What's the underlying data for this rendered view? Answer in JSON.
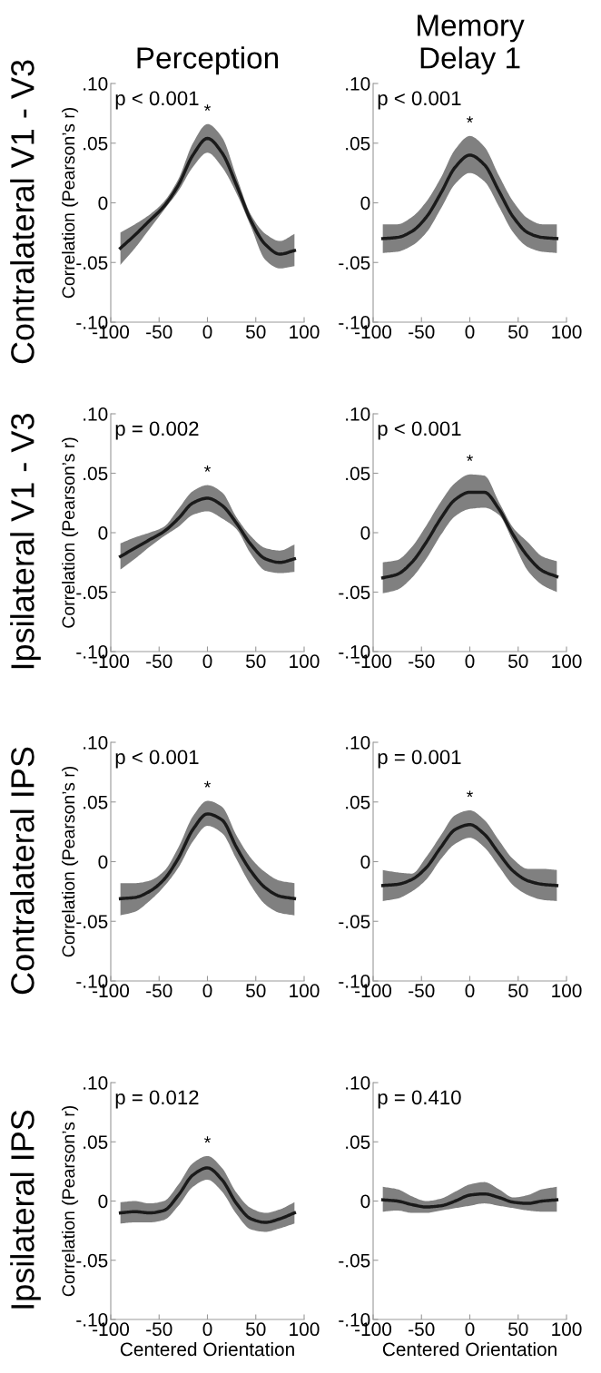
{
  "chart_data": [
    {
      "type": "line",
      "title": "Perception",
      "ylabel": "Correlation (Pearson’s r)",
      "x": [
        -90,
        -75,
        -60,
        -45,
        -30,
        -15,
        0,
        15,
        30,
        45,
        60,
        75,
        90
      ],
      "xlim": [
        -100,
        100
      ],
      "xticks": [
        -100,
        -50,
        0,
        50,
        100
      ],
      "ylim": [
        -0.1,
        0.1
      ],
      "yticks": [
        {
          "value": -0.1,
          "label": "-.10"
        },
        {
          "value": -0.05,
          "label": "-.05"
        },
        0,
        {
          "value": 0.05,
          "label": ".05"
        },
        {
          "value": 0.1,
          "label": ".10"
        }
      ],
      "grid": false,
      "legend": false,
      "marker": "none",
      "line_style": "solid",
      "series": [
        {
          "color": "#1a1a1a",
          "values": [
            -0.038,
            -0.027,
            -0.015,
            -0.003,
            0.015,
            0.04,
            0.054,
            0.042,
            0.015,
            -0.015,
            -0.035,
            -0.043,
            -0.04
          ],
          "lower": [
            -0.052,
            -0.038,
            -0.022,
            -0.006,
            0.01,
            0.03,
            0.042,
            0.03,
            0.008,
            -0.02,
            -0.048,
            -0.055,
            -0.053
          ],
          "upper": [
            -0.025,
            -0.018,
            -0.01,
            0.001,
            0.02,
            0.05,
            0.066,
            0.055,
            0.022,
            -0.01,
            -0.026,
            -0.032,
            -0.026
          ]
        }
      ],
      "annotations": [
        "p < 0.001",
        "*",
        "Contralateral V1 - V3"
      ]
    },
    {
      "type": "line",
      "title": "Memory\nDelay 1",
      "x": [
        -90,
        -75,
        -60,
        -45,
        -30,
        -15,
        0,
        15,
        30,
        45,
        60,
        75,
        90
      ],
      "xlim": [
        -100,
        100
      ],
      "xticks": [
        -100,
        -50,
        0,
        50,
        100
      ],
      "ylim": [
        -0.1,
        0.1
      ],
      "yticks": [
        {
          "value": -0.1,
          "label": "-.10"
        },
        {
          "value": -0.05,
          "label": "-.05"
        },
        0,
        {
          "value": 0.05,
          "label": ".05"
        },
        {
          "value": 0.1,
          "label": ".10"
        }
      ],
      "grid": false,
      "legend": false,
      "marker": "none",
      "line_style": "solid",
      "series": [
        {
          "color": "#1a1a1a",
          "values": [
            -0.03,
            -0.029,
            -0.024,
            -0.012,
            0.008,
            0.03,
            0.04,
            0.032,
            0.01,
            -0.012,
            -0.025,
            -0.029,
            -0.03
          ],
          "lower": [
            -0.042,
            -0.041,
            -0.036,
            -0.025,
            -0.005,
            0.016,
            0.025,
            0.018,
            -0.003,
            -0.025,
            -0.037,
            -0.041,
            -0.042
          ],
          "upper": [
            -0.018,
            -0.018,
            -0.012,
            0.001,
            0.021,
            0.045,
            0.056,
            0.047,
            0.023,
            0.001,
            -0.013,
            -0.018,
            -0.018
          ]
        }
      ],
      "annotations": [
        "p < 0.001",
        "*"
      ]
    },
    {
      "type": "line",
      "x": [
        -90,
        -75,
        -60,
        -45,
        -30,
        -15,
        0,
        15,
        30,
        45,
        60,
        75,
        90
      ],
      "ylabel": "Correlation (Pearson’s r)",
      "xlim": [
        -100,
        100
      ],
      "xticks": [
        -100,
        -50,
        0,
        50,
        100
      ],
      "ylim": [
        -0.1,
        0.1
      ],
      "yticks": [
        {
          "value": -0.1,
          "label": "-.10"
        },
        {
          "value": -0.05,
          "label": "-.05"
        },
        0,
        {
          "value": 0.05,
          "label": ".05"
        },
        {
          "value": 0.1,
          "label": ".10"
        }
      ],
      "grid": false,
      "legend": false,
      "marker": "none",
      "line_style": "solid",
      "series": [
        {
          "color": "#1a1a1a",
          "values": [
            -0.02,
            -0.013,
            -0.006,
            0.001,
            0.012,
            0.025,
            0.029,
            0.023,
            0.008,
            -0.01,
            -0.022,
            -0.025,
            -0.022
          ],
          "lower": [
            -0.031,
            -0.022,
            -0.012,
            -0.003,
            0.005,
            0.015,
            0.018,
            0.012,
            0.003,
            -0.018,
            -0.032,
            -0.034,
            -0.033
          ],
          "upper": [
            -0.009,
            -0.004,
            0.0,
            0.005,
            0.02,
            0.035,
            0.04,
            0.034,
            0.013,
            -0.003,
            -0.013,
            -0.015,
            -0.01
          ]
        }
      ],
      "annotations": [
        "p = 0.002",
        "*",
        "Ipsilateral V1 - V3"
      ]
    },
    {
      "type": "line",
      "x": [
        -90,
        -75,
        -60,
        -45,
        -30,
        -15,
        0,
        15,
        30,
        45,
        60,
        75,
        90
      ],
      "xlim": [
        -100,
        100
      ],
      "xticks": [
        -100,
        -50,
        0,
        50,
        100
      ],
      "ylim": [
        -0.1,
        0.1
      ],
      "yticks": [
        {
          "value": -0.1,
          "label": "-.10"
        },
        {
          "value": -0.05,
          "label": "-.05"
        },
        0,
        {
          "value": 0.05,
          "label": ".05"
        },
        {
          "value": 0.1,
          "label": ".10"
        }
      ],
      "grid": false,
      "legend": false,
      "marker": "none",
      "line_style": "solid",
      "series": [
        {
          "color": "#1a1a1a",
          "values": [
            -0.038,
            -0.035,
            -0.025,
            -0.008,
            0.012,
            0.028,
            0.034,
            0.034,
            0.02,
            -0.002,
            -0.02,
            -0.032,
            -0.037
          ],
          "lower": [
            -0.051,
            -0.048,
            -0.038,
            -0.022,
            -0.002,
            0.014,
            0.02,
            0.021,
            0.015,
            -0.008,
            -0.032,
            -0.044,
            -0.05
          ],
          "upper": [
            -0.025,
            -0.023,
            -0.012,
            0.006,
            0.026,
            0.042,
            0.049,
            0.048,
            0.026,
            0.004,
            -0.008,
            -0.02,
            -0.024
          ]
        }
      ],
      "annotations": [
        "p < 0.001",
        "*"
      ]
    },
    {
      "type": "line",
      "x": [
        -90,
        -75,
        -60,
        -45,
        -30,
        -15,
        0,
        15,
        30,
        45,
        60,
        75,
        90
      ],
      "ylabel": "Correlation (Pearson’s r)",
      "xlim": [
        -100,
        100
      ],
      "xticks": [
        -100,
        -50,
        0,
        50,
        100
      ],
      "ylim": [
        -0.1,
        0.1
      ],
      "yticks": [
        {
          "value": -0.1,
          "label": "-.10"
        },
        {
          "value": -0.05,
          "label": "-.05"
        },
        0,
        {
          "value": 0.05,
          "label": ".05"
        },
        {
          "value": 0.1,
          "label": ".10"
        }
      ],
      "grid": false,
      "legend": false,
      "marker": "none",
      "line_style": "solid",
      "series": [
        {
          "color": "#1a1a1a",
          "values": [
            -0.031,
            -0.03,
            -0.025,
            -0.015,
            0.003,
            0.027,
            0.04,
            0.035,
            0.012,
            -0.008,
            -0.022,
            -0.029,
            -0.031
          ],
          "lower": [
            -0.045,
            -0.042,
            -0.033,
            -0.021,
            -0.005,
            0.017,
            0.03,
            0.024,
            0.002,
            -0.02,
            -0.036,
            -0.043,
            -0.045
          ],
          "upper": [
            -0.018,
            -0.018,
            -0.016,
            -0.008,
            0.012,
            0.038,
            0.051,
            0.046,
            0.022,
            0.003,
            -0.009,
            -0.016,
            -0.018
          ]
        }
      ],
      "annotations": [
        "p < 0.001",
        "*",
        "Contralateral IPS"
      ]
    },
    {
      "type": "line",
      "x": [
        -90,
        -75,
        -60,
        -45,
        -30,
        -15,
        0,
        15,
        30,
        45,
        60,
        75,
        90
      ],
      "xlim": [
        -100,
        100
      ],
      "xticks": [
        -100,
        -50,
        0,
        50,
        100
      ],
      "ylim": [
        -0.1,
        0.1
      ],
      "yticks": [
        {
          "value": -0.1,
          "label": "-.10"
        },
        {
          "value": -0.05,
          "label": "-.05"
        },
        0,
        {
          "value": 0.05,
          "label": ".05"
        },
        {
          "value": 0.1,
          "label": ".10"
        }
      ],
      "grid": false,
      "legend": false,
      "marker": "none",
      "line_style": "solid",
      "series": [
        {
          "color": "#1a1a1a",
          "values": [
            -0.02,
            -0.019,
            -0.015,
            -0.005,
            0.012,
            0.027,
            0.031,
            0.023,
            0.007,
            -0.008,
            -0.016,
            -0.019,
            -0.02
          ],
          "lower": [
            -0.033,
            -0.031,
            -0.025,
            -0.015,
            0.002,
            0.015,
            0.02,
            0.012,
            -0.004,
            -0.02,
            -0.028,
            -0.032,
            -0.033
          ],
          "upper": [
            -0.007,
            -0.009,
            -0.01,
            0.004,
            0.022,
            0.039,
            0.043,
            0.035,
            0.018,
            0.002,
            -0.006,
            -0.006,
            -0.007
          ]
        }
      ],
      "annotations": [
        "p = 0.001",
        "*"
      ]
    },
    {
      "type": "line",
      "x": [
        -90,
        -75,
        -60,
        -45,
        -30,
        -15,
        0,
        15,
        30,
        45,
        60,
        75,
        90
      ],
      "xlabel": "Centered Orientation",
      "ylabel": "Correlation (Pearson’s r)",
      "xlim": [
        -100,
        100
      ],
      "xticks": [
        -100,
        -50,
        0,
        50,
        100
      ],
      "ylim": [
        -0.1,
        0.1
      ],
      "yticks": [
        {
          "value": -0.1,
          "label": "-.10"
        },
        {
          "value": -0.05,
          "label": "-.05"
        },
        0,
        {
          "value": 0.05,
          "label": ".05"
        },
        {
          "value": 0.1,
          "label": ".10"
        }
      ],
      "grid": false,
      "legend": false,
      "marker": "none",
      "line_style": "solid",
      "series": [
        {
          "color": "#1a1a1a",
          "values": [
            -0.01,
            -0.009,
            -0.01,
            -0.008,
            0.005,
            0.022,
            0.028,
            0.018,
            -0.002,
            -0.015,
            -0.018,
            -0.015,
            -0.01
          ],
          "lower": [
            -0.019,
            -0.018,
            -0.018,
            -0.016,
            -0.004,
            0.012,
            0.018,
            0.008,
            -0.011,
            -0.024,
            -0.026,
            -0.023,
            -0.019
          ],
          "upper": [
            -0.001,
            0.0,
            -0.002,
            0.0,
            0.014,
            0.032,
            0.038,
            0.028,
            0.007,
            -0.006,
            -0.01,
            -0.007,
            -0.001
          ]
        }
      ],
      "annotations": [
        "p = 0.012",
        "*",
        "Ipsilateral IPS"
      ]
    },
    {
      "type": "line",
      "x": [
        -90,
        -75,
        -60,
        -45,
        -30,
        -15,
        0,
        15,
        30,
        45,
        60,
        75,
        90
      ],
      "xlabel": "Centered Orientation",
      "xlim": [
        -100,
        100
      ],
      "xticks": [
        -100,
        -50,
        0,
        50,
        100
      ],
      "ylim": [
        -0.1,
        0.1
      ],
      "yticks": [
        {
          "value": -0.1,
          "label": "-.10"
        },
        {
          "value": -0.05,
          "label": "-.05"
        },
        0,
        {
          "value": 0.05,
          "label": ".05"
        },
        {
          "value": 0.1,
          "label": ".10"
        }
      ],
      "grid": false,
      "legend": false,
      "marker": "none",
      "line_style": "solid",
      "series": [
        {
          "color": "#1a1a1a",
          "values": [
            0.001,
            0.0,
            -0.003,
            -0.005,
            -0.004,
            0.0,
            0.005,
            0.006,
            0.003,
            -0.001,
            -0.002,
            0.0,
            0.001
          ],
          "lower": [
            -0.009,
            -0.008,
            -0.01,
            -0.01,
            -0.008,
            -0.006,
            -0.004,
            -0.002,
            -0.004,
            -0.006,
            -0.008,
            -0.009,
            -0.009
          ],
          "upper": [
            0.012,
            0.01,
            0.004,
            0.0,
            0.002,
            0.008,
            0.014,
            0.016,
            0.01,
            0.003,
            0.005,
            0.01,
            0.012
          ]
        }
      ],
      "annotations": [
        "p = 0.410"
      ]
    }
  ]
}
